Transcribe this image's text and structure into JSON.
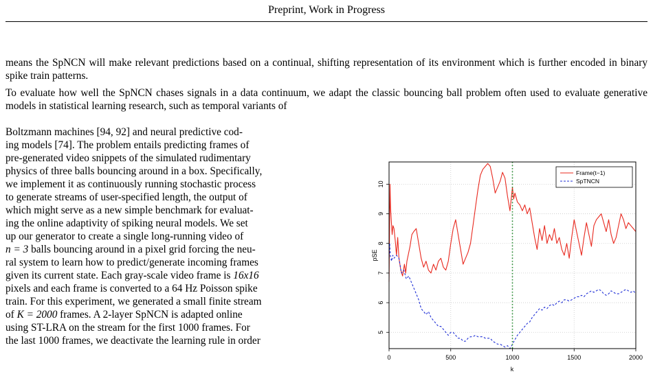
{
  "header": "Preprint, Work in Progress",
  "para1": "means the SpNCN will make relevant predictions based on a continual, shifting representation of its environment which is further encoded in binary spike train patterns.",
  "para2_full": "To evaluate how well the SpNCN chases signals in a data continuum, we adapt the classic bouncing ball problem often used to evaluate generative models in statistical learning research, such as temporal variants of",
  "para2_lines": [
    "Boltzmann machines [94, 92] and neural predictive cod-",
    "ing models [74]. The problem entails predicting frames of",
    "pre-generated video snippets of the simulated rudimentary",
    "physics of three balls bouncing around in a box. Specifically,",
    "we implement it as continuously running stochastic process",
    "to generate streams of user-specified length, the output of",
    "which might serve as a new simple benchmark for evaluat-",
    "ing the online adaptivity of spiking neural models. We set",
    "up our generator to create a single long-running video of"
  ],
  "para2_n_eq": "n = 3",
  "para2_after_n": " balls bouncing around in a pixel grid forcing the neu-",
  "para2_lines2": [
    "ral system to learn how to predict/generate incoming frames"
  ],
  "para2_grayscale_pre": "given its current state. Each gray-scale video frame is ",
  "para2_size": "16x16",
  "para2_pixels_pre": "pixels and each frame is converted to a ",
  "para2_hz": "64",
  "para2_pixels_post": " Hz Poisson spike",
  "para2_train": "train. For this experiment, we generated a small finite stream",
  "para2_of": "of ",
  "para2_K": "K = 2000",
  "para2_frames": " frames. A 2-layer SpNCN is adapted online",
  "para2_using_pre": "using ST-LRA on the stream for the first ",
  "para2_1000a": "1000",
  "para2_using_post": " frames. For",
  "para2_last_pre": "the last ",
  "para2_1000b": "1000",
  "para2_last_post": " frames, we deactivate the learning rule in order",
  "chart_data": {
    "type": "line",
    "xlabel": "k",
    "ylabel": "pSE",
    "xlim": [
      0,
      2000
    ],
    "ylim": [
      4.45,
      10.75
    ],
    "xticks": [
      0,
      500,
      1000,
      1500,
      2000
    ],
    "yticks": [
      5,
      6,
      7,
      8,
      9,
      10
    ],
    "grid": true,
    "legend_position": "top-right",
    "vline_x": 1000,
    "vline_color": "#1f8a2a",
    "series": [
      {
        "name": "Frame(t−1)",
        "color": "#e8281e",
        "style": "solid",
        "x": [
          0,
          8,
          12,
          18,
          25,
          32,
          40,
          50,
          60,
          70,
          80,
          95,
          110,
          125,
          135,
          145,
          155,
          170,
          185,
          200,
          220,
          240,
          260,
          280,
          300,
          320,
          340,
          360,
          380,
          400,
          420,
          440,
          460,
          480,
          500,
          520,
          540,
          560,
          580,
          600,
          620,
          640,
          660,
          680,
          700,
          720,
          740,
          760,
          780,
          800,
          820,
          840,
          860,
          880,
          900,
          920,
          940,
          960,
          980,
          1000,
          1010,
          1020,
          1040,
          1060,
          1080,
          1100,
          1120,
          1140,
          1160,
          1180,
          1200,
          1220,
          1240,
          1260,
          1280,
          1300,
          1320,
          1340,
          1360,
          1380,
          1400,
          1420,
          1440,
          1460,
          1480,
          1500,
          1520,
          1540,
          1560,
          1580,
          1600,
          1620,
          1640,
          1660,
          1680,
          1700,
          1720,
          1740,
          1760,
          1780,
          1800,
          1820,
          1840,
          1860,
          1880,
          1900,
          1920,
          1940,
          1960,
          1980,
          2000
        ],
        "values": [
          6.7,
          10.0,
          9.2,
          8.8,
          8.3,
          8.6,
          8.5,
          8.1,
          7.6,
          8.2,
          7.5,
          7.1,
          6.9,
          7.3,
          7.0,
          7.4,
          7.6,
          7.9,
          8.3,
          8.4,
          8.5,
          8.0,
          7.5,
          7.2,
          7.4,
          7.1,
          7.0,
          7.3,
          7.1,
          7.4,
          7.5,
          7.2,
          7.1,
          7.4,
          8.0,
          8.5,
          8.8,
          8.3,
          7.8,
          7.3,
          7.5,
          7.7,
          8.0,
          8.6,
          9.2,
          9.8,
          10.3,
          10.5,
          10.6,
          10.7,
          10.6,
          10.2,
          9.7,
          9.9,
          10.1,
          10.4,
          10.2,
          9.6,
          9.1,
          9.9,
          9.5,
          9.7,
          9.4,
          9.3,
          9.1,
          9.3,
          9.0,
          9.2,
          8.7,
          8.2,
          7.8,
          8.5,
          8.1,
          8.6,
          8.0,
          8.3,
          8.1,
          8.5,
          8.0,
          8.2,
          7.8,
          7.6,
          8.0,
          7.5,
          8.2,
          8.8,
          8.4,
          8.0,
          7.6,
          8.2,
          8.7,
          8.3,
          7.9,
          8.6,
          8.8,
          8.9,
          9.0,
          8.7,
          8.4,
          8.8,
          8.3,
          8.0,
          8.2,
          8.6,
          9.0,
          8.8,
          8.5,
          8.7,
          8.6,
          8.5,
          8.4
        ]
      },
      {
        "name": "SpTNCN",
        "color": "#1f2fd6",
        "style": "dashed",
        "x": [
          0,
          5,
          10,
          20,
          30,
          40,
          60,
          80,
          100,
          120,
          140,
          160,
          180,
          200,
          220,
          240,
          260,
          280,
          300,
          320,
          340,
          360,
          380,
          400,
          420,
          440,
          460,
          480,
          500,
          520,
          540,
          560,
          580,
          600,
          620,
          640,
          660,
          680,
          700,
          720,
          740,
          760,
          780,
          800,
          820,
          840,
          860,
          880,
          900,
          920,
          940,
          960,
          980,
          1000,
          1020,
          1040,
          1060,
          1080,
          1100,
          1120,
          1140,
          1160,
          1180,
          1200,
          1220,
          1240,
          1260,
          1280,
          1300,
          1320,
          1340,
          1360,
          1380,
          1400,
          1420,
          1440,
          1460,
          1480,
          1500,
          1520,
          1540,
          1560,
          1580,
          1600,
          1620,
          1640,
          1660,
          1680,
          1700,
          1720,
          1740,
          1760,
          1780,
          1800,
          1820,
          1840,
          1860,
          1880,
          1900,
          1920,
          1940,
          1960,
          1980,
          2000
        ],
        "values": [
          7.5,
          8.0,
          7.6,
          7.4,
          7.6,
          7.5,
          7.6,
          7.5,
          7.0,
          7.1,
          6.8,
          6.9,
          6.7,
          6.5,
          6.3,
          6.1,
          5.8,
          5.7,
          5.6,
          5.7,
          5.5,
          5.4,
          5.3,
          5.2,
          5.2,
          5.1,
          5.0,
          4.9,
          5.0,
          5.0,
          4.9,
          4.8,
          4.8,
          4.7,
          4.7,
          4.8,
          4.85,
          4.85,
          4.9,
          4.85,
          4.85,
          4.85,
          4.8,
          4.8,
          4.8,
          4.7,
          4.65,
          4.6,
          4.6,
          4.55,
          4.5,
          4.55,
          4.45,
          4.6,
          4.75,
          4.9,
          5.0,
          5.1,
          5.2,
          5.3,
          5.35,
          5.5,
          5.6,
          5.7,
          5.8,
          5.75,
          5.85,
          5.8,
          5.9,
          5.95,
          5.9,
          6.0,
          6.05,
          6.0,
          6.1,
          6.1,
          6.05,
          6.1,
          6.15,
          6.2,
          6.2,
          6.25,
          6.2,
          6.3,
          6.35,
          6.4,
          6.35,
          6.4,
          6.45,
          6.4,
          6.3,
          6.25,
          6.3,
          6.4,
          6.35,
          6.3,
          6.3,
          6.35,
          6.4,
          6.45,
          6.4,
          6.35,
          6.4,
          6.3
        ]
      }
    ]
  }
}
